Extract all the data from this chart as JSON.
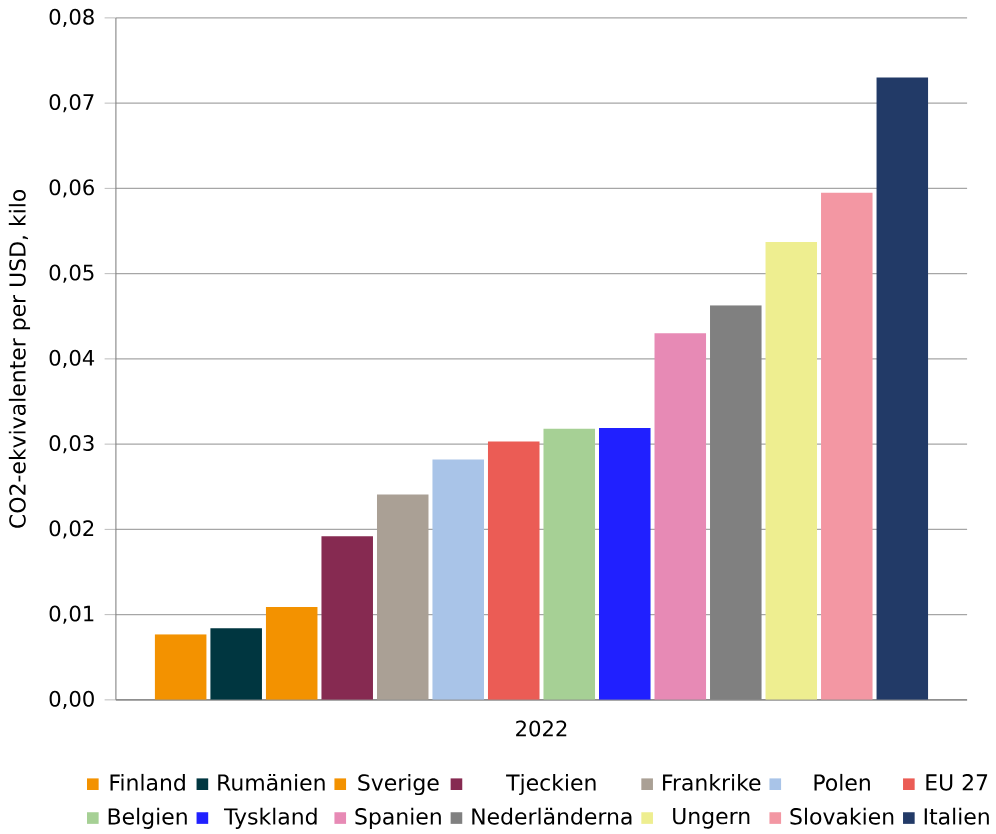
{
  "chart_data": {
    "type": "bar",
    "ylabel": "CO2-ekvivalenter per USD, kilo",
    "categories": [
      "2022"
    ],
    "series": [
      {
        "name": "Finland",
        "color": "#f39200",
        "values": [
          0.0077
        ]
      },
      {
        "name": "Rumänien",
        "color": "#003640",
        "values": [
          0.0084
        ]
      },
      {
        "name": "Sverige",
        "color": "#f39200",
        "values": [
          0.0109
        ]
      },
      {
        "name": "Tjeckien",
        "color": "#862a51",
        "values": [
          0.0192
        ]
      },
      {
        "name": "Frankrike",
        "color": "#aaa095",
        "values": [
          0.0241
        ]
      },
      {
        "name": "Polen",
        "color": "#a9c4e8",
        "values": [
          0.0282
        ]
      },
      {
        "name": "EU 27",
        "color": "#eb5c55",
        "values": [
          0.0303
        ]
      },
      {
        "name": "Belgien",
        "color": "#a6d095",
        "values": [
          0.0318
        ]
      },
      {
        "name": "Tyskland",
        "color": "#2020ff",
        "values": [
          0.0319
        ]
      },
      {
        "name": "Spanien",
        "color": "#e78ab5",
        "values": [
          0.043
        ]
      },
      {
        "name": "Nederländerna",
        "color": "#808080",
        "values": [
          0.0463
        ]
      },
      {
        "name": "Ungern",
        "color": "#eeee90",
        "values": [
          0.0537
        ]
      },
      {
        "name": "Slovakien",
        "color": "#f397a3",
        "values": [
          0.0595
        ]
      },
      {
        "name": "Italien",
        "color": "#223a67",
        "values": [
          0.073
        ]
      }
    ],
    "ylim": [
      0,
      0.08
    ],
    "yticks": [
      {
        "value": 0,
        "label": "0,00"
      },
      {
        "value": 0.01,
        "label": "0,01"
      },
      {
        "value": 0.02,
        "label": "0,02"
      },
      {
        "value": 0.03,
        "label": "0,03"
      },
      {
        "value": 0.04,
        "label": "0,04"
      },
      {
        "value": 0.05,
        "label": "0,05"
      },
      {
        "value": 0.06,
        "label": "0,06"
      },
      {
        "value": 0.07,
        "label": "0,07"
      },
      {
        "value": 0.08,
        "label": "0,08"
      }
    ],
    "grid": "y",
    "legend": "bottom"
  }
}
